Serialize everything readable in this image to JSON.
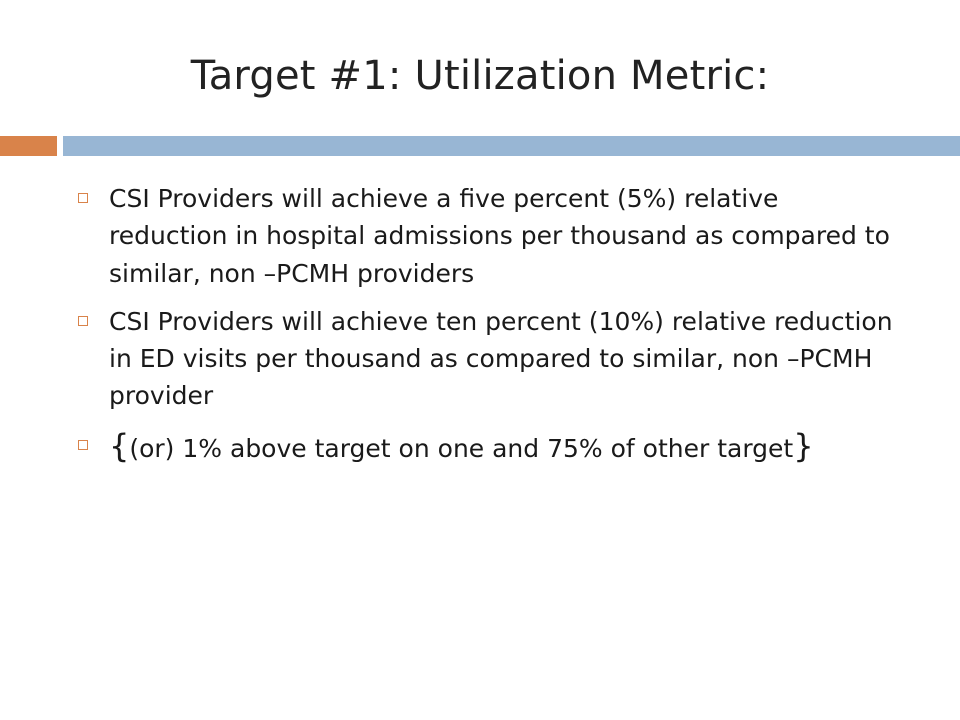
{
  "slide": {
    "title": "Target #1: Utilization Metric:",
    "accent_colors": {
      "left_bar": "#d9834a",
      "right_bar": "#98b6d4",
      "bullet_marker": "#d9834a"
    },
    "bullets": [
      {
        "marker_icon": "hollow-square-bullet",
        "text": "CSI Providers will achieve a five percent (5%) relative reduction in hospital admissions per thousand as compared to similar, non –PCMH providers"
      },
      {
        "marker_icon": "hollow-square-bullet",
        "text": "CSI Providers will achieve ten percent (10%) relative reduction in ED visits per thousand as compared to similar, non –PCMH provider"
      },
      {
        "marker_icon": "hollow-square-bullet",
        "open_brace": "{",
        "text": "(or) 1% above target on one and 75% of other target",
        "close_brace": "}"
      }
    ]
  }
}
